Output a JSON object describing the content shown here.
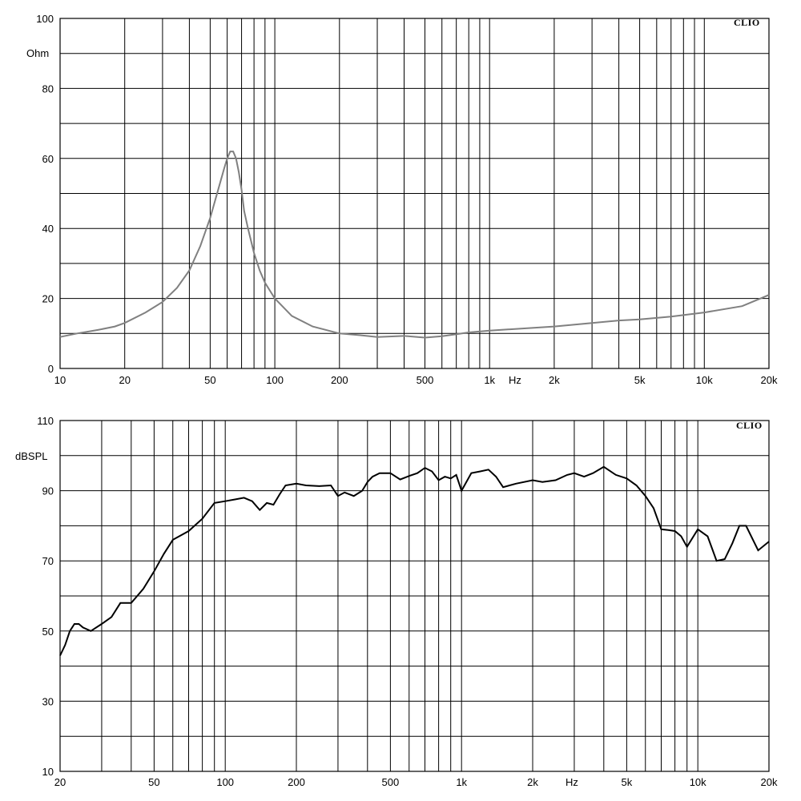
{
  "chart_data": [
    {
      "type": "line",
      "brand": "CLIO",
      "ylabel": "Ohm",
      "xunit": "Hz",
      "xscale": "log",
      "xlim": [
        10,
        20000
      ],
      "ylim": [
        0,
        100
      ],
      "grid": true,
      "y_ticks": [
        "0",
        "20",
        "40",
        "60",
        "80",
        "100"
      ],
      "y_tick_values": [
        0,
        20,
        40,
        60,
        80,
        100
      ],
      "x_tick_labels": [
        "10",
        "20",
        "50",
        "100",
        "200",
        "500",
        "1k",
        "2k",
        "5k",
        "10k",
        "20k"
      ],
      "x_tick_values": [
        10,
        20,
        50,
        100,
        200,
        500,
        1000,
        2000,
        5000,
        10000,
        20000
      ],
      "series_color": "#808080",
      "series": [
        {
          "x": [
            10,
            12,
            15,
            18,
            20,
            25,
            30,
            35,
            40,
            45,
            50,
            55,
            58,
            60,
            62,
            64,
            66,
            68,
            70,
            72,
            75,
            80,
            85,
            90,
            100,
            120,
            150,
            200,
            250,
            300,
            400,
            500,
            600,
            700,
            800,
            1000,
            1500,
            2000,
            3000,
            4000,
            5000,
            7000,
            10000,
            15000,
            20000
          ],
          "y": [
            9,
            10,
            11,
            12,
            13,
            16,
            19,
            23,
            28,
            35,
            43,
            52,
            57,
            60,
            62,
            62,
            60,
            56,
            51,
            45,
            40,
            33,
            28,
            24.5,
            20,
            15,
            12,
            10,
            9.5,
            9,
            9.3,
            8.8,
            9.2,
            9.8,
            10.3,
            10.8,
            11.5,
            12,
            13,
            13.7,
            14,
            14.8,
            16,
            17.8,
            21
          ]
        }
      ]
    },
    {
      "type": "line",
      "brand": "CLIO",
      "ylabel": "dBSPL",
      "xunit": "Hz",
      "xscale": "log",
      "xlim": [
        20,
        20000
      ],
      "ylim": [
        10,
        110
      ],
      "grid": true,
      "y_ticks": [
        "10",
        "30",
        "50",
        "70",
        "90",
        "110"
      ],
      "y_tick_values": [
        10,
        30,
        50,
        70,
        90,
        110
      ],
      "x_tick_labels": [
        "20",
        "50",
        "100",
        "200",
        "500",
        "1k",
        "2k",
        "5k",
        "10k",
        "20k"
      ],
      "x_tick_values": [
        20,
        50,
        100,
        200,
        500,
        1000,
        2000,
        5000,
        10000,
        20000
      ],
      "series_color": "#000000",
      "series": [
        {
          "x": [
            20,
            21,
            22,
            23,
            24,
            25,
            27,
            30,
            33,
            36,
            40,
            45,
            50,
            55,
            60,
            70,
            80,
            90,
            100,
            110,
            120,
            130,
            140,
            150,
            160,
            170,
            180,
            200,
            220,
            250,
            280,
            300,
            320,
            350,
            380,
            400,
            420,
            450,
            500,
            550,
            600,
            650,
            700,
            750,
            800,
            850,
            900,
            950,
            1000,
            1100,
            1200,
            1300,
            1400,
            1500,
            1700,
            2000,
            2200,
            2500,
            2800,
            3000,
            3300,
            3600,
            4000,
            4500,
            5000,
            5500,
            6000,
            6500,
            7000,
            7500,
            8000,
            8500,
            9000,
            10000,
            11000,
            12000,
            13000,
            14000,
            15000,
            16000,
            18000,
            20000
          ],
          "y": [
            43,
            46,
            50,
            52,
            52,
            51,
            50,
            52,
            54,
            58,
            58,
            62,
            67,
            72,
            76,
            78.5,
            82,
            86.5,
            87,
            87.5,
            88,
            87,
            84.5,
            86.5,
            86,
            89,
            91.5,
            92,
            91.5,
            91.3,
            91.5,
            88.5,
            89.5,
            88.5,
            90,
            92.5,
            94,
            95,
            95,
            93.2,
            94.2,
            95,
            96.5,
            95.5,
            93,
            94,
            93.5,
            94.5,
            90,
            95,
            95.5,
            96,
            94,
            91,
            92,
            93,
            92.5,
            93,
            94.5,
            95,
            94,
            95,
            96.8,
            94.5,
            93.5,
            91.5,
            88.5,
            85,
            79,
            78.8,
            78.5,
            77,
            74,
            79,
            77,
            70,
            70.5,
            75,
            80,
            80,
            73,
            75.5
          ]
        }
      ]
    }
  ]
}
